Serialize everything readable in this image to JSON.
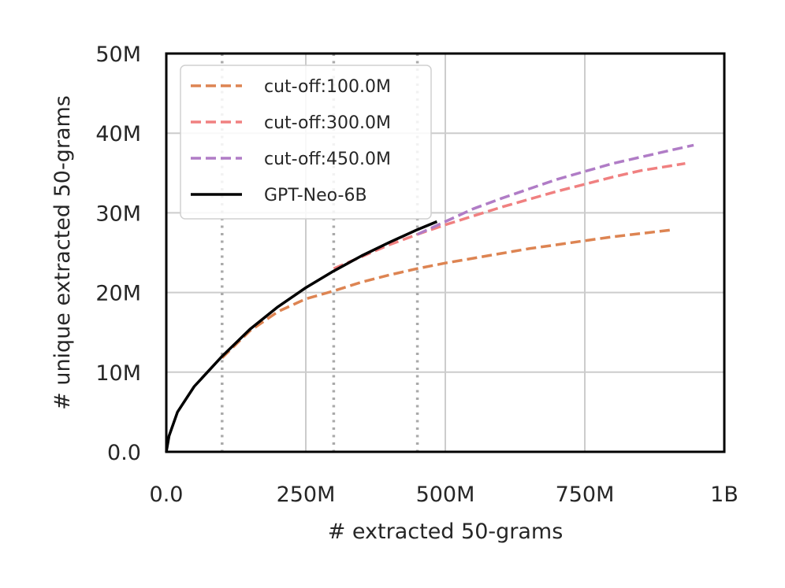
{
  "chart_data": {
    "type": "line",
    "xlabel": "# extracted 50-grams",
    "ylabel": "# unique extracted 50-grams",
    "xlim": [
      0,
      1000000000
    ],
    "ylim": [
      0,
      50000000
    ],
    "xticks": [
      {
        "value": 0,
        "label": "0.0"
      },
      {
        "value": 250000000,
        "label": "250M"
      },
      {
        "value": 500000000,
        "label": "500M"
      },
      {
        "value": 750000000,
        "label": "750M"
      },
      {
        "value": 1000000000,
        "label": "1B"
      }
    ],
    "yticks": [
      {
        "value": 0,
        "label": "0.0"
      },
      {
        "value": 10000000,
        "label": "10M"
      },
      {
        "value": 20000000,
        "label": "20M"
      },
      {
        "value": 30000000,
        "label": "30M"
      },
      {
        "value": 40000000,
        "label": "40M"
      },
      {
        "value": 50000000,
        "label": "50M"
      }
    ],
    "grid": true,
    "legend_position": "top-left",
    "vertical_markers": [
      100000000,
      300000000,
      450000000
    ],
    "series": [
      {
        "name": "cut-off:100.0M",
        "style": "dashed",
        "color": "#dd8452",
        "x": [
          100000000,
          150000000,
          200000000,
          250000000,
          300000000,
          350000000,
          400000000,
          450000000,
          500000000,
          550000000,
          600000000,
          650000000,
          700000000,
          750000000,
          800000000,
          850000000,
          910000000
        ],
        "y": [
          11800000,
          15200000,
          17600000,
          19200000,
          20200000,
          21300000,
          22200000,
          23000000,
          23700000,
          24300000,
          24900000,
          25500000,
          26000000,
          26500000,
          27000000,
          27400000,
          27900000
        ]
      },
      {
        "name": "cut-off:300.0M",
        "style": "dashed",
        "color": "#f08080",
        "x": [
          300000000,
          350000000,
          400000000,
          450000000,
          500000000,
          550000000,
          600000000,
          650000000,
          700000000,
          750000000,
          800000000,
          850000000,
          930000000
        ],
        "y": [
          23000000,
          24500000,
          26000000,
          27300000,
          28500000,
          29600000,
          30700000,
          31700000,
          32700000,
          33600000,
          34500000,
          35300000,
          36200000
        ]
      },
      {
        "name": "cut-off:450.0M",
        "style": "dashed",
        "color": "#b07cc6",
        "x": [
          450000000,
          500000000,
          550000000,
          600000000,
          650000000,
          700000000,
          750000000,
          800000000,
          850000000,
          900000000,
          945000000
        ],
        "y": [
          27300000,
          28900000,
          30500000,
          31800000,
          33000000,
          34200000,
          35200000,
          36200000,
          37000000,
          37800000,
          38500000
        ]
      },
      {
        "name": "GPT-Neo-6B",
        "style": "solid",
        "color": "#000000",
        "x": [
          0,
          5000000,
          20000000,
          50000000,
          100000000,
          150000000,
          200000000,
          250000000,
          300000000,
          350000000,
          400000000,
          450000000,
          485000000
        ],
        "y": [
          0,
          2000000,
          5000000,
          8200000,
          12000000,
          15400000,
          18200000,
          20600000,
          22700000,
          24600000,
          26300000,
          27900000,
          28900000
        ]
      }
    ]
  }
}
